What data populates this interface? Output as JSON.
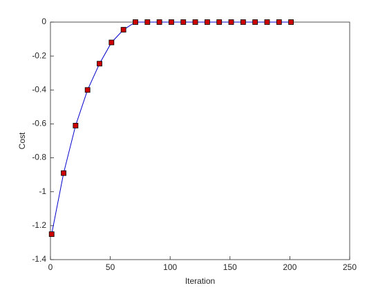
{
  "chart_data": {
    "type": "line",
    "x_label": "Iteration",
    "y_label": "Cost",
    "x": [
      1,
      11,
      21,
      31,
      41,
      51,
      61,
      71,
      81,
      91,
      101,
      111,
      121,
      131,
      141,
      151,
      161,
      171,
      181,
      191,
      201
    ],
    "series": [
      {
        "color": "#0000cc",
        "marker_color": "#cc0000",
        "values": [
          -1.25,
          -0.89,
          -0.61,
          -0.4,
          -0.245,
          -0.12,
          -0.045,
          0,
          0,
          0,
          0,
          0,
          0,
          0,
          0,
          0,
          0,
          0,
          0,
          0,
          0
        ]
      }
    ],
    "xlim": [
      0,
      250
    ],
    "xticks": [
      0,
      50,
      100,
      150,
      200,
      250
    ],
    "ylim": [
      -1.4,
      0
    ],
    "yticks": [
      -1.4,
      -1.2,
      -1,
      -0.8,
      -0.6,
      -0.4,
      -0.2,
      0
    ],
    "grid": false
  }
}
